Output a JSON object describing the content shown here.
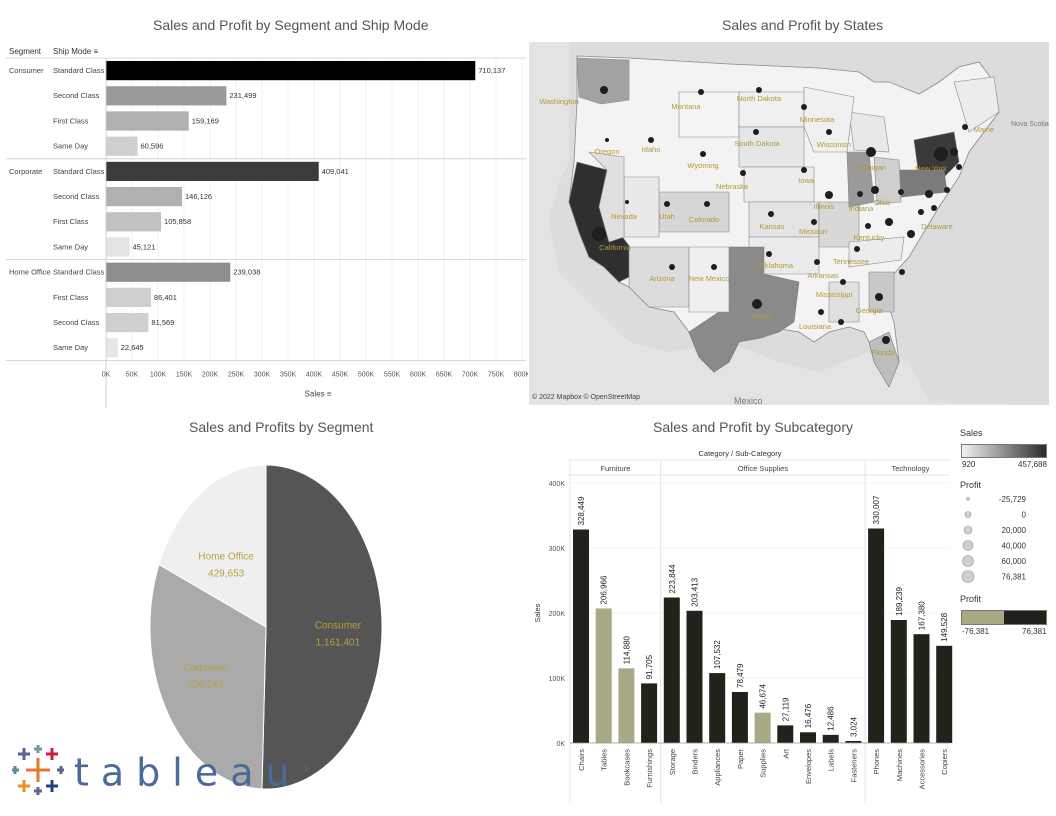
{
  "panel1": {
    "title": "Sales and Profit by Segment and Ship Mode",
    "header_segment": "Segment",
    "header_shipmode": "Ship Mode",
    "axis_title": "Sales",
    "groups": [
      {
        "segment": "Consumer",
        "rows": [
          {
            "mode": "Standard Class",
            "value": 710137,
            "label": "710,137",
            "color": "#000000"
          },
          {
            "mode": "Second Class",
            "value": 231499,
            "label": "231,499",
            "color": "#9a9a9a"
          },
          {
            "mode": "First Class",
            "value": 159169,
            "label": "159,169",
            "color": "#b0b0b0"
          },
          {
            "mode": "Same Day",
            "value": 60596,
            "label": "60,596",
            "color": "#cfcfcf"
          }
        ]
      },
      {
        "segment": "Corporate",
        "rows": [
          {
            "mode": "Standard Class",
            "value": 409041,
            "label": "409,041",
            "color": "#3b3b3b"
          },
          {
            "mode": "Second Class",
            "value": 146126,
            "label": "146,126",
            "color": "#b0b0b0"
          },
          {
            "mode": "First Class",
            "value": 105858,
            "label": "105,858",
            "color": "#c1c1c1"
          },
          {
            "mode": "Same Day",
            "value": 45121,
            "label": "45,121",
            "color": "#e3e3e3"
          }
        ]
      },
      {
        "segment": "Home Office",
        "rows": [
          {
            "mode": "Standard Class",
            "value": 239038,
            "label": "239,038",
            "color": "#8e8e8e"
          },
          {
            "mode": "First Class",
            "value": 86401,
            "label": "86,401",
            "color": "#cfcfcf"
          },
          {
            "mode": "Second Class",
            "value": 81569,
            "label": "81,569",
            "color": "#cfcfcf"
          },
          {
            "mode": "Same Day",
            "value": 22645,
            "label": "22,645",
            "color": "#e6e6e6"
          }
        ]
      }
    ],
    "ticks": [
      "0K",
      "50K",
      "100K",
      "150K",
      "200K",
      "250K",
      "300K",
      "350K",
      "400K",
      "450K",
      "500K",
      "550K",
      "600K",
      "650K",
      "700K",
      "750K",
      "800K"
    ],
    "xmax": 800000
  },
  "panel2": {
    "title": "Sales and Profit by States",
    "attribution": "© 2022 Mapbox © OpenStreetMap",
    "country_label": "Mexico",
    "region_label": "Nova Scotia",
    "state_labels": [
      "Washington",
      "Montana",
      "North Dakota",
      "Minnesota",
      "Oregon",
      "Idaho",
      "South Dakota",
      "Wisconsin",
      "Michigan",
      "New York",
      "Maine",
      "Wyoming",
      "Nebraska",
      "Iowa",
      "Ohio",
      "Nevada",
      "Utah",
      "Colorado",
      "Kansas",
      "Illinois",
      "Indiana",
      "Delaware",
      "California",
      "Missouri",
      "Kentucky",
      "Tennessee",
      "Oklahoma",
      "Arkansas",
      "Arizona",
      "New Mexico",
      "Mississippi",
      "Georgia",
      "Texas",
      "Louisiana",
      "Florida"
    ]
  },
  "panel3": {
    "title": "Sales  and Profits by Segment",
    "slices": [
      {
        "name": "Consumer",
        "value": 1161401,
        "label": "1,161,401",
        "color": "#555555"
      },
      {
        "name": "Corporate",
        "value": 706146,
        "label": "706,146",
        "color": "#aaaaaa"
      },
      {
        "name": "Home Office",
        "value": 429653,
        "label": "429,653",
        "color": "#efefef"
      }
    ],
    "label_color": "#b8a040"
  },
  "panel4": {
    "title": "Sales and Profit by Subcategory",
    "header": "Category / Sub-Category",
    "ylabel": "Sales",
    "yticks": [
      "0K",
      "100K",
      "200K",
      "300K",
      "400K"
    ],
    "ymax": 400000,
    "categories": [
      {
        "name": "Furniture",
        "items": [
          {
            "name": "Chairs",
            "value": 328449,
            "label": "328,449",
            "color": "#22221a"
          },
          {
            "name": "Tables",
            "value": 206966,
            "label": "206,966",
            "color": "#a8a985"
          },
          {
            "name": "Bookcases",
            "value": 114880,
            "label": "114,880",
            "color": "#a8a985"
          },
          {
            "name": "Furnishings",
            "value": 91705,
            "label": "91,705",
            "color": "#22221a"
          }
        ]
      },
      {
        "name": "Office Supplies",
        "items": [
          {
            "name": "Storage",
            "value": 223844,
            "label": "223,844",
            "color": "#22221a"
          },
          {
            "name": "Binders",
            "value": 203413,
            "label": "203,413",
            "color": "#22221a"
          },
          {
            "name": "Appliances",
            "value": 107532,
            "label": "107,532",
            "color": "#22221a"
          },
          {
            "name": "Paper",
            "value": 78479,
            "label": "78,479",
            "color": "#22221a"
          },
          {
            "name": "Supplies",
            "value": 46674,
            "label": "46,674",
            "color": "#a8a985"
          },
          {
            "name": "Art",
            "value": 27119,
            "label": "27,119",
            "color": "#22221a"
          },
          {
            "name": "Envelopes",
            "value": 16476,
            "label": "16,476",
            "color": "#22221a"
          },
          {
            "name": "Labels",
            "value": 12486,
            "label": "12,486",
            "color": "#22221a"
          },
          {
            "name": "Fasteners",
            "value": 3024,
            "label": "3,024",
            "color": "#22221a"
          }
        ]
      },
      {
        "name": "Technology",
        "items": [
          {
            "name": "Phones",
            "value": 330007,
            "label": "330,007",
            "color": "#22221a"
          },
          {
            "name": "Machines",
            "value": 189239,
            "label": "189,239",
            "color": "#22221a"
          },
          {
            "name": "Accessories",
            "value": 167380,
            "label": "167,380",
            "color": "#22221a"
          },
          {
            "name": "Copiers",
            "value": 149528,
            "label": "149,528",
            "color": "#22221a"
          }
        ]
      }
    ]
  },
  "legend": {
    "sales_title": "Sales",
    "sales_min": "920",
    "sales_max": "457,688",
    "size_title": "Profit",
    "size_values": [
      "-25,729",
      "0",
      "20,000",
      "40,000",
      "60,000",
      "76,381"
    ],
    "color_title": "Profit",
    "color_min": "-76,381",
    "color_max": "76,381"
  },
  "logo": {
    "text": "tableau",
    "mark": "®"
  },
  "chart_data": [
    {
      "type": "bar",
      "title": "Sales and Profit by Segment and Ship Mode",
      "xlabel": "Sales",
      "xlim": [
        0,
        800000
      ],
      "categories": [
        "Consumer / Standard Class",
        "Consumer / Second Class",
        "Consumer / First Class",
        "Consumer / Same Day",
        "Corporate / Standard Class",
        "Corporate / Second Class",
        "Corporate / First Class",
        "Corporate / Same Day",
        "Home Office / Standard Class",
        "Home Office / First Class",
        "Home Office / Second Class",
        "Home Office / Same Day"
      ],
      "values": [
        710137,
        231499,
        159169,
        60596,
        409041,
        146126,
        105858,
        45121,
        239038,
        86401,
        81569,
        22645
      ]
    },
    {
      "type": "pie",
      "title": "Sales  and Profits by Segment",
      "categories": [
        "Consumer",
        "Corporate",
        "Home Office"
      ],
      "values": [
        1161401,
        706146,
        429653
      ]
    },
    {
      "type": "bar",
      "title": "Sales and Profit by Subcategory",
      "ylabel": "Sales",
      "ylim": [
        0,
        400000
      ],
      "categories": [
        "Chairs",
        "Tables",
        "Bookcases",
        "Furnishings",
        "Storage",
        "Binders",
        "Appliances",
        "Paper",
        "Supplies",
        "Art",
        "Envelopes",
        "Labels",
        "Fasteners",
        "Phones",
        "Machines",
        "Accessories",
        "Copiers"
      ],
      "values": [
        328449,
        206966,
        114880,
        91705,
        223844,
        203413,
        107532,
        78479,
        46674,
        27119,
        16476,
        12486,
        3024,
        330007,
        189239,
        167380,
        149528
      ]
    }
  ]
}
